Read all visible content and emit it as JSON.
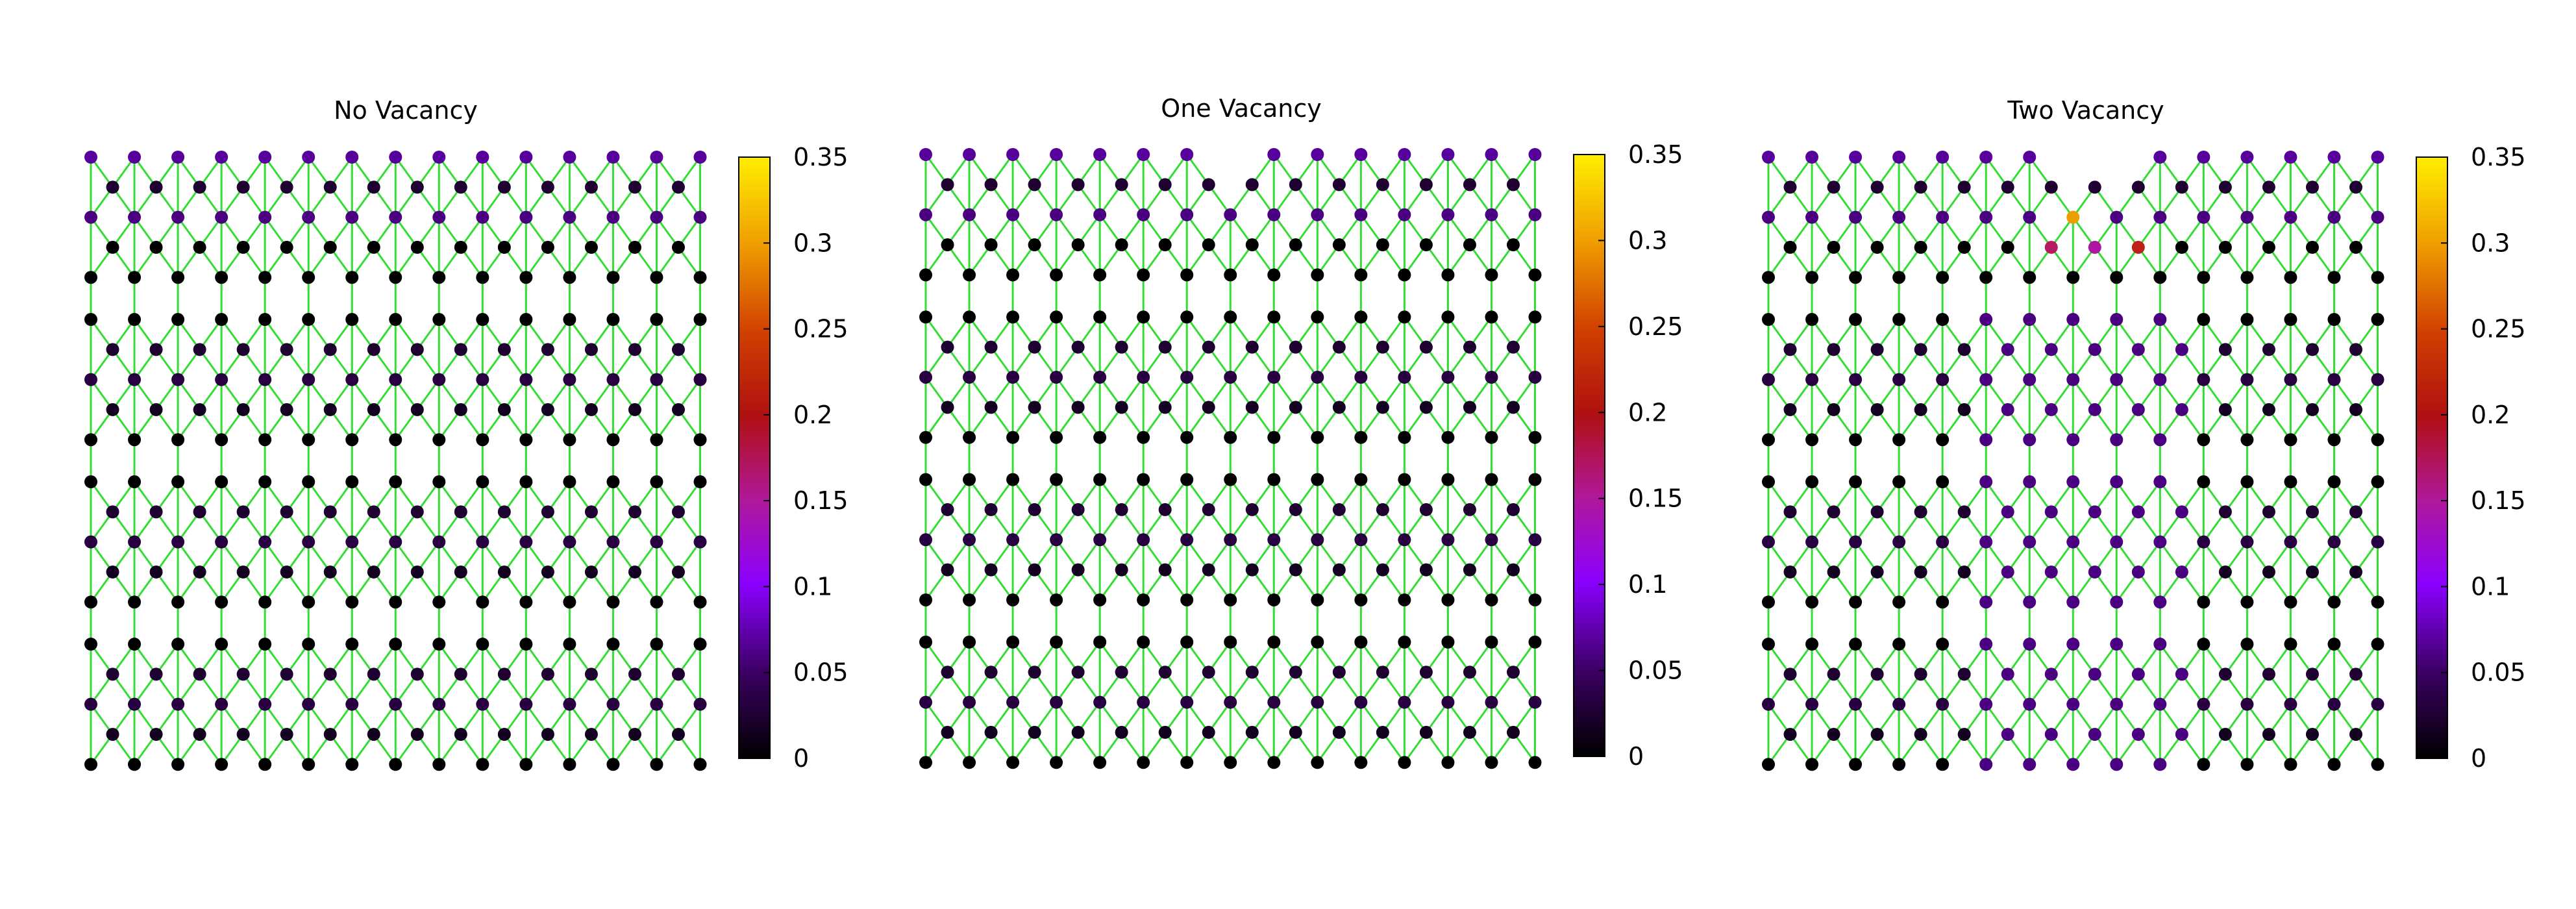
{
  "chart_data": [
    {
      "type": "scatter",
      "title": "No Vacancy",
      "colorbar": {
        "ticks": [
          "0",
          "0.05",
          "0.1",
          "0.15",
          "0.2",
          "0.25",
          "0.3",
          "0.35"
        ],
        "range": [
          0,
          0.35
        ]
      },
      "vacancies": [],
      "high_values": [],
      "grid": false
    },
    {
      "type": "scatter",
      "title": "One Vacancy",
      "colorbar": {
        "ticks": [
          "0",
          "0.05",
          "0.1",
          "0.15",
          "0.2",
          "0.25",
          "0.3",
          "0.35"
        ],
        "range": [
          0,
          0.35
        ]
      },
      "vacancies": [
        [
          7,
          0
        ]
      ],
      "high_values": [],
      "grid": false
    },
    {
      "type": "scatter",
      "title": "Two Vacancy",
      "colorbar": {
        "ticks": [
          "0",
          "0.05",
          "0.1",
          "0.15",
          "0.2",
          "0.25",
          "0.3",
          "0.35"
        ],
        "range": [
          0,
          0.35
        ]
      },
      "vacancies": [
        [
          7,
          0
        ],
        [
          8,
          0
        ]
      ],
      "high_values": [
        {
          "col": 7,
          "row": 2,
          "value": 0.31
        },
        {
          "col": 6.5,
          "row": 3,
          "value": 0.2
        },
        {
          "col": 7.5,
          "row": 3,
          "value": 0.17
        },
        {
          "col": 8.5,
          "row": 3,
          "value": 0.23
        }
      ],
      "grid": false
    }
  ],
  "colors": {
    "bonds": "#33dd33",
    "colormap": [
      "#000000",
      "#3a0060",
      "#8a00ff",
      "#b0189a",
      "#c02010",
      "#e07a00",
      "#ffee00"
    ]
  }
}
